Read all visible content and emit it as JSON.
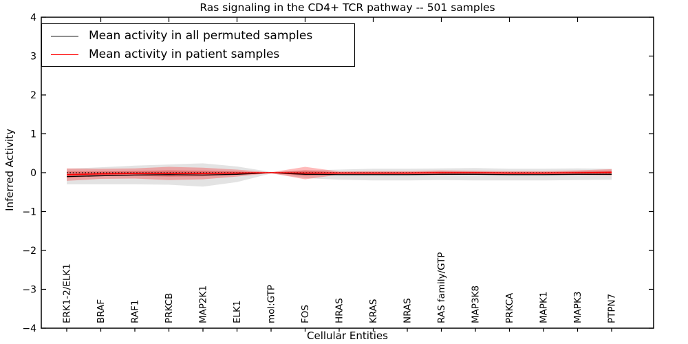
{
  "figure": {
    "title": "Ras signaling in the CD4+ TCR pathway -- 501 samples",
    "xlabel": "Cellular Entities",
    "ylabel": "Inferred Activity"
  },
  "legend": {
    "position": "upper left",
    "items": [
      {
        "label": "Mean activity in all permuted samples",
        "color": "#000000",
        "style": "solid"
      },
      {
        "label": "Mean activity in patient samples",
        "color": "#ff0000",
        "style": "solid"
      }
    ]
  },
  "chart_data": {
    "type": "line",
    "title": "Ras signaling in the CD4+ TCR pathway -- 501 samples",
    "xlabel": "Cellular Entities",
    "ylabel": "Inferred Activity",
    "sample_count": 501,
    "ylim": [
      -4,
      4
    ],
    "yticks": [
      4,
      3,
      2,
      1,
      0,
      -1,
      -2,
      -3,
      -4
    ],
    "grid": false,
    "legend_position": "upper left",
    "categories": [
      "ERK1-2/ELK1",
      "BRAF",
      "RAF1",
      "PRKCB",
      "MAP2K1",
      "ELK1",
      "mol:GTP",
      "FOS",
      "HRAS",
      "KRAS",
      "NRAS",
      "RAS family/GTP",
      "MAP3K8",
      "PRKCA",
      "MAPK1",
      "MAPK3",
      "PTPN7"
    ],
    "series": [
      {
        "name": "Mean activity in all permuted samples",
        "color": "#000000",
        "style": "solid",
        "width": 1.3,
        "values": [
          -0.1,
          -0.08,
          -0.06,
          -0.05,
          -0.06,
          -0.04,
          0.0,
          -0.04,
          -0.05,
          -0.05,
          -0.05,
          -0.04,
          -0.04,
          -0.05,
          -0.05,
          -0.04,
          -0.04
        ]
      },
      {
        "name": "Mean activity in patient samples",
        "color": "#ff0000",
        "style": "solid",
        "width": 1.6,
        "values": [
          -0.05,
          -0.03,
          -0.02,
          -0.02,
          -0.02,
          -0.01,
          0.0,
          -0.01,
          -0.01,
          -0.01,
          -0.01,
          0.0,
          0.0,
          -0.01,
          -0.01,
          0.0,
          0.01
        ]
      },
      {
        "name": "zero reference",
        "color": "#000000",
        "style": "dotted",
        "width": 1.3,
        "values": [
          0,
          0,
          0,
          0,
          0,
          0,
          0,
          0,
          0,
          0,
          0,
          0,
          0,
          0,
          0,
          0,
          0
        ]
      }
    ],
    "bands": [
      {
        "name": "permuted-spread-band",
        "color": "#999999",
        "opacity": 0.28,
        "center_series": 0,
        "half_widths": [
          0.2,
          0.22,
          0.24,
          0.26,
          0.3,
          0.2,
          0.02,
          0.1,
          0.13,
          0.15,
          0.15,
          0.15,
          0.16,
          0.15,
          0.15,
          0.15,
          0.14
        ]
      },
      {
        "name": "patient-spread-band",
        "color": "#ff0000",
        "opacity": 0.27,
        "center_series": 1,
        "half_widths": [
          0.16,
          0.13,
          0.13,
          0.17,
          0.15,
          0.09,
          0.01,
          0.16,
          0.04,
          0.05,
          0.05,
          0.06,
          0.05,
          0.05,
          0.05,
          0.06,
          0.08
        ]
      },
      {
        "name": "patient-inner-band",
        "color": "#cc0000",
        "opacity": 0.3,
        "center_series": 1,
        "half_widths": [
          0.08,
          0.06,
          0.06,
          0.08,
          0.07,
          0.04,
          0.005,
          0.07,
          0.02,
          0.025,
          0.025,
          0.03,
          0.025,
          0.025,
          0.025,
          0.03,
          0.04
        ]
      }
    ],
    "axes": {
      "tick_label_font_px": 14,
      "category_label_font_px": 13.5,
      "top_ticks_every_other_category": true
    }
  }
}
